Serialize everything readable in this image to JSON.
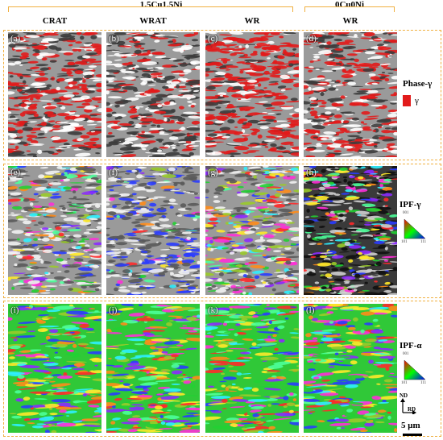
{
  "header": {
    "group_alloy": "1.5Cu1.5Ni",
    "group_ref": "0Cu0Ni",
    "columns": [
      "CRAT",
      "WRAT",
      "WR",
      "WR"
    ]
  },
  "rows": [
    {
      "side_title": "Phase-γ",
      "legend_symbol": "γ",
      "panels": [
        {
          "label": "(a)",
          "scheme": "phase",
          "density": 0.45
        },
        {
          "label": "(b)",
          "scheme": "phase",
          "density": 0.3
        },
        {
          "label": "(c)",
          "scheme": "phase",
          "density": 0.65
        },
        {
          "label": "(d)",
          "scheme": "phase",
          "density": 0.4
        }
      ]
    },
    {
      "side_title": "IPF-γ",
      "triangle_labels": [
        "001",
        "101",
        "111"
      ],
      "panels": [
        {
          "label": "(e)",
          "scheme": "ipf-gamma",
          "density": 0.4
        },
        {
          "label": "(f)",
          "scheme": "ipf-gamma-blue",
          "density": 0.35
        },
        {
          "label": "(g)",
          "scheme": "ipf-gamma",
          "density": 0.55
        },
        {
          "label": "(h)",
          "scheme": "ipf-gamma-dark",
          "density": 0.45
        }
      ]
    },
    {
      "side_title": "IPF-α",
      "triangle_labels": [
        "001",
        "101",
        "111"
      ],
      "panels": [
        {
          "label": "(i)",
          "scheme": "ipf-alpha",
          "density": 1
        },
        {
          "label": "(j)",
          "scheme": "ipf-alpha",
          "density": 1
        },
        {
          "label": "(k)",
          "scheme": "ipf-alpha",
          "density": 1
        },
        {
          "label": "(l)",
          "scheme": "ipf-alpha",
          "density": 1
        }
      ]
    }
  ],
  "axes": {
    "nd": "ND",
    "rd": "RD"
  },
  "scale_bar": "5 μm",
  "colors": {
    "bracket": "#f0b040",
    "gamma": "#e21b1b"
  }
}
